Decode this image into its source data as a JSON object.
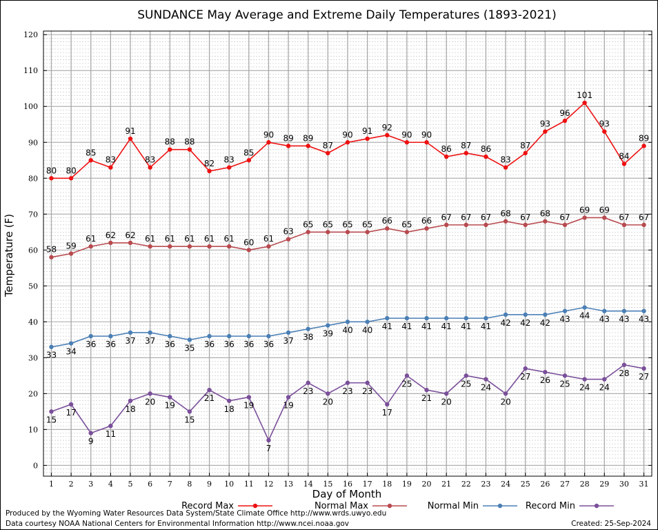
{
  "chart_data": {
    "type": "line",
    "title": "SUNDANCE May Average and Extreme Daily Temperatures (1893-2021)",
    "xlabel": "Day of Month",
    "ylabel": "Temperature (F)",
    "x": [
      1,
      2,
      3,
      4,
      5,
      6,
      7,
      8,
      9,
      10,
      11,
      12,
      13,
      14,
      15,
      16,
      17,
      18,
      19,
      20,
      21,
      22,
      23,
      24,
      25,
      26,
      27,
      28,
      29,
      30,
      31
    ],
    "xlim": [
      0.6,
      31.4
    ],
    "ylim": [
      -3,
      121
    ],
    "yticks": [
      0,
      10,
      20,
      30,
      40,
      50,
      60,
      70,
      80,
      90,
      100,
      110,
      120
    ],
    "grid": true,
    "legend_position": "bottom",
    "series": [
      {
        "name": "Record Max",
        "color": "#ee1111",
        "label_side": "above",
        "values": [
          80,
          80,
          85,
          83,
          91,
          83,
          88,
          88,
          82,
          83,
          85,
          90,
          89,
          89,
          87,
          90,
          91,
          92,
          90,
          90,
          86,
          87,
          86,
          83,
          87,
          93,
          96,
          101,
          93,
          84,
          89
        ]
      },
      {
        "name": "Normal Max",
        "color": "#b84a4f",
        "label_side": "above",
        "values": [
          58,
          59,
          61,
          62,
          62,
          61,
          61,
          61,
          61,
          61,
          60,
          61,
          63,
          65,
          65,
          65,
          65,
          66,
          65,
          66,
          67,
          67,
          67,
          68,
          67,
          68,
          67,
          69,
          69,
          67,
          67
        ]
      },
      {
        "name": "Normal Min",
        "color": "#4a7fb5",
        "label_side": "below",
        "values": [
          33,
          34,
          36,
          36,
          37,
          37,
          36,
          35,
          36,
          36,
          36,
          36,
          37,
          38,
          39,
          40,
          40,
          41,
          41,
          41,
          41,
          41,
          41,
          42,
          42,
          42,
          43,
          44,
          43,
          43,
          43
        ]
      },
      {
        "name": "Record Min",
        "color": "#7a4f9a",
        "label_side": "below",
        "values": [
          15,
          17,
          9,
          11,
          18,
          20,
          19,
          15,
          21,
          18,
          19,
          7,
          19,
          23,
          20,
          23,
          23,
          17,
          25,
          21,
          20,
          25,
          24,
          20,
          27,
          26,
          25,
          24,
          24,
          28,
          27
        ]
      }
    ]
  },
  "footer": {
    "produced_by": "Produced by the Wyoming Water Resources Data System/State Climate Office http://www.wrds.uwyo.edu",
    "data_courtesy": "Data courtesy NOAA National Centers for Environmental Information http://www.ncei.noaa.gov",
    "created": "Created:  25-Sep-2024"
  }
}
